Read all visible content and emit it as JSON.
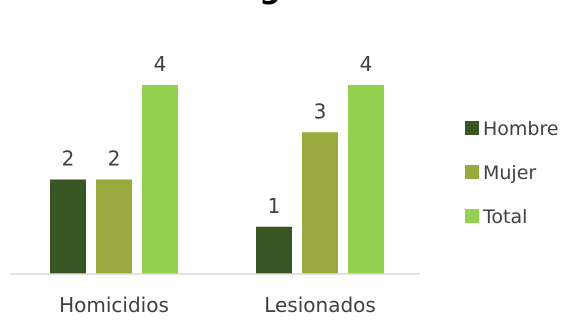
{
  "chart_data": {
    "type": "bar",
    "title": "g",
    "categories": [
      "Homicidios",
      "Lesionados"
    ],
    "series": [
      {
        "name": "Hombre",
        "values": [
          2,
          1
        ],
        "color": "#375623"
      },
      {
        "name": "Mujer",
        "values": [
          2,
          3
        ],
        "color": "#9aaa3f"
      },
      {
        "name": "Total",
        "values": [
          4,
          4
        ],
        "color": "#92d050"
      }
    ],
    "ylim": [
      0,
      4
    ],
    "grid": false,
    "legend": "right"
  }
}
